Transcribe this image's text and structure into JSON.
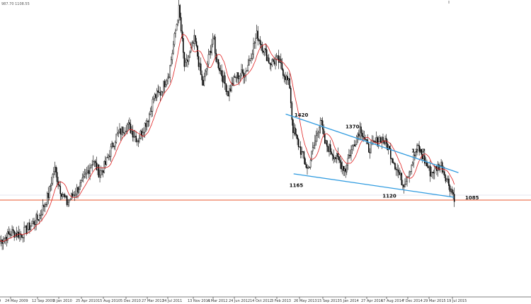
{
  "header": {
    "ohlc_readout": "987.70 1108.55"
  },
  "chart_data": {
    "type": "candlestick",
    "ylim": [
      1000,
      2000
    ],
    "x_labels": [
      "24 May 2009",
      "12 Sep 2009",
      "3 Jan 2010",
      "25 Apr 2010",
      "15 Aug 2010",
      "5 Dec 2010",
      "27 Mar 2011",
      "24 Jul 2011",
      "13 Nov 2011",
      "4 Mar 2012",
      "24 Jun 2012",
      "14 Oct 2012",
      "3 Feb 2013",
      "26 May 2013",
      "15 Sep 2013",
      "5 Jan 2014",
      "27 Apr 2014",
      "17 Aug 2014",
      "7 Dec 2014",
      "29 Mar 2015",
      "19 Jul 2015"
    ],
    "annotations": [
      {
        "text": "1420",
        "x": "15 May 2013",
        "y": 1420
      },
      {
        "text": "1370",
        "x": "20 Jan 2014",
        "y": 1370
      },
      {
        "text": "1267",
        "x": "10 Jan 2015",
        "y": 1267
      },
      {
        "text": "1165",
        "x": "20 Apr 2013",
        "y": 1165
      },
      {
        "text": "1120",
        "x": "10 Aug 2014",
        "y": 1120
      }
    ],
    "price_tag": {
      "text": "1085",
      "y": 1085
    },
    "price_line_color": "#e8542c",
    "ma_color": "#e02020",
    "trendline_color": "#2f9be0",
    "trendlines": [
      {
        "x1": "12 Mar 2013",
        "y1": 1440,
        "x2": "10 Aug 2015",
        "y2": 1190
      },
      {
        "x1": "20 Apr 2013",
        "y1": 1185,
        "x2": "20 Jul 2015",
        "y2": 1085
      }
    ],
    "candles_anchors": [
      {
        "d": "1 Apr 2009",
        "p": 895
      },
      {
        "d": "24 May 2009",
        "p": 935
      },
      {
        "d": "1 Jul 2009",
        "p": 925
      },
      {
        "d": "12 Sep 2009",
        "p": 1000
      },
      {
        "d": "1 Nov 2009",
        "p": 1095
      },
      {
        "d": "3 Dec 2009",
        "p": 1210
      },
      {
        "d": "3 Jan 2010",
        "p": 1120
      },
      {
        "d": "5 Feb 2010",
        "p": 1060
      },
      {
        "d": "25 Apr 2010",
        "p": 1150
      },
      {
        "d": "15 Jun 2010",
        "p": 1245
      },
      {
        "d": "20 Jul 2010",
        "p": 1185
      },
      {
        "d": "15 Aug 2010",
        "p": 1220
      },
      {
        "d": "10 Oct 2010",
        "p": 1345
      },
      {
        "d": "5 Dec 2010",
        "p": 1395
      },
      {
        "d": "28 Jan 2011",
        "p": 1330
      },
      {
        "d": "27 Mar 2011",
        "p": 1430
      },
      {
        "d": "25 Apr 2011",
        "p": 1510
      },
      {
        "d": "1 Jun 2011",
        "p": 1530
      },
      {
        "d": "24 Jul 2011",
        "p": 1620
      },
      {
        "d": "5 Sep 2011",
        "p": 1890
      },
      {
        "d": "30 Sep 2011",
        "p": 1630
      },
      {
        "d": "13 Nov 2011",
        "p": 1760
      },
      {
        "d": "28 Dec 2011",
        "p": 1560
      },
      {
        "d": "28 Feb 2012",
        "p": 1780
      },
      {
        "d": "4 Mar 2012",
        "p": 1700
      },
      {
        "d": "15 May 2012",
        "p": 1530
      },
      {
        "d": "24 Jun 2012",
        "p": 1600
      },
      {
        "d": "15 Aug 2012",
        "p": 1620
      },
      {
        "d": "14 Oct 2012",
        "p": 1780
      },
      {
        "d": "20 Dec 2012",
        "p": 1660
      },
      {
        "d": "3 Feb 2013",
        "p": 1670
      },
      {
        "d": "1 Apr 2013",
        "p": 1560
      },
      {
        "d": "15 Apr 2013",
        "p": 1380
      },
      {
        "d": "28 Jun 2013",
        "p": 1200
      },
      {
        "d": "28 Aug 2013",
        "p": 1420
      },
      {
        "d": "15 Sep 2013",
        "p": 1320
      },
      {
        "d": "31 Dec 2013",
        "p": 1200
      },
      {
        "d": "5 Jan 2014",
        "p": 1240
      },
      {
        "d": "17 Mar 2014",
        "p": 1385
      },
      {
        "d": "27 Apr 2014",
        "p": 1290
      },
      {
        "d": "10 Jul 2014",
        "p": 1340
      },
      {
        "d": "17 Aug 2014",
        "p": 1300
      },
      {
        "d": "5 Nov 2014",
        "p": 1140
      },
      {
        "d": "7 Dec 2014",
        "p": 1200
      },
      {
        "d": "22 Jan 2015",
        "p": 1300
      },
      {
        "d": "29 Mar 2015",
        "p": 1190
      },
      {
        "d": "18 May 2015",
        "p": 1225
      },
      {
        "d": "19 Jul 2015",
        "p": 1090
      },
      {
        "d": "24 Jul 2015",
        "p": 1085
      }
    ]
  }
}
